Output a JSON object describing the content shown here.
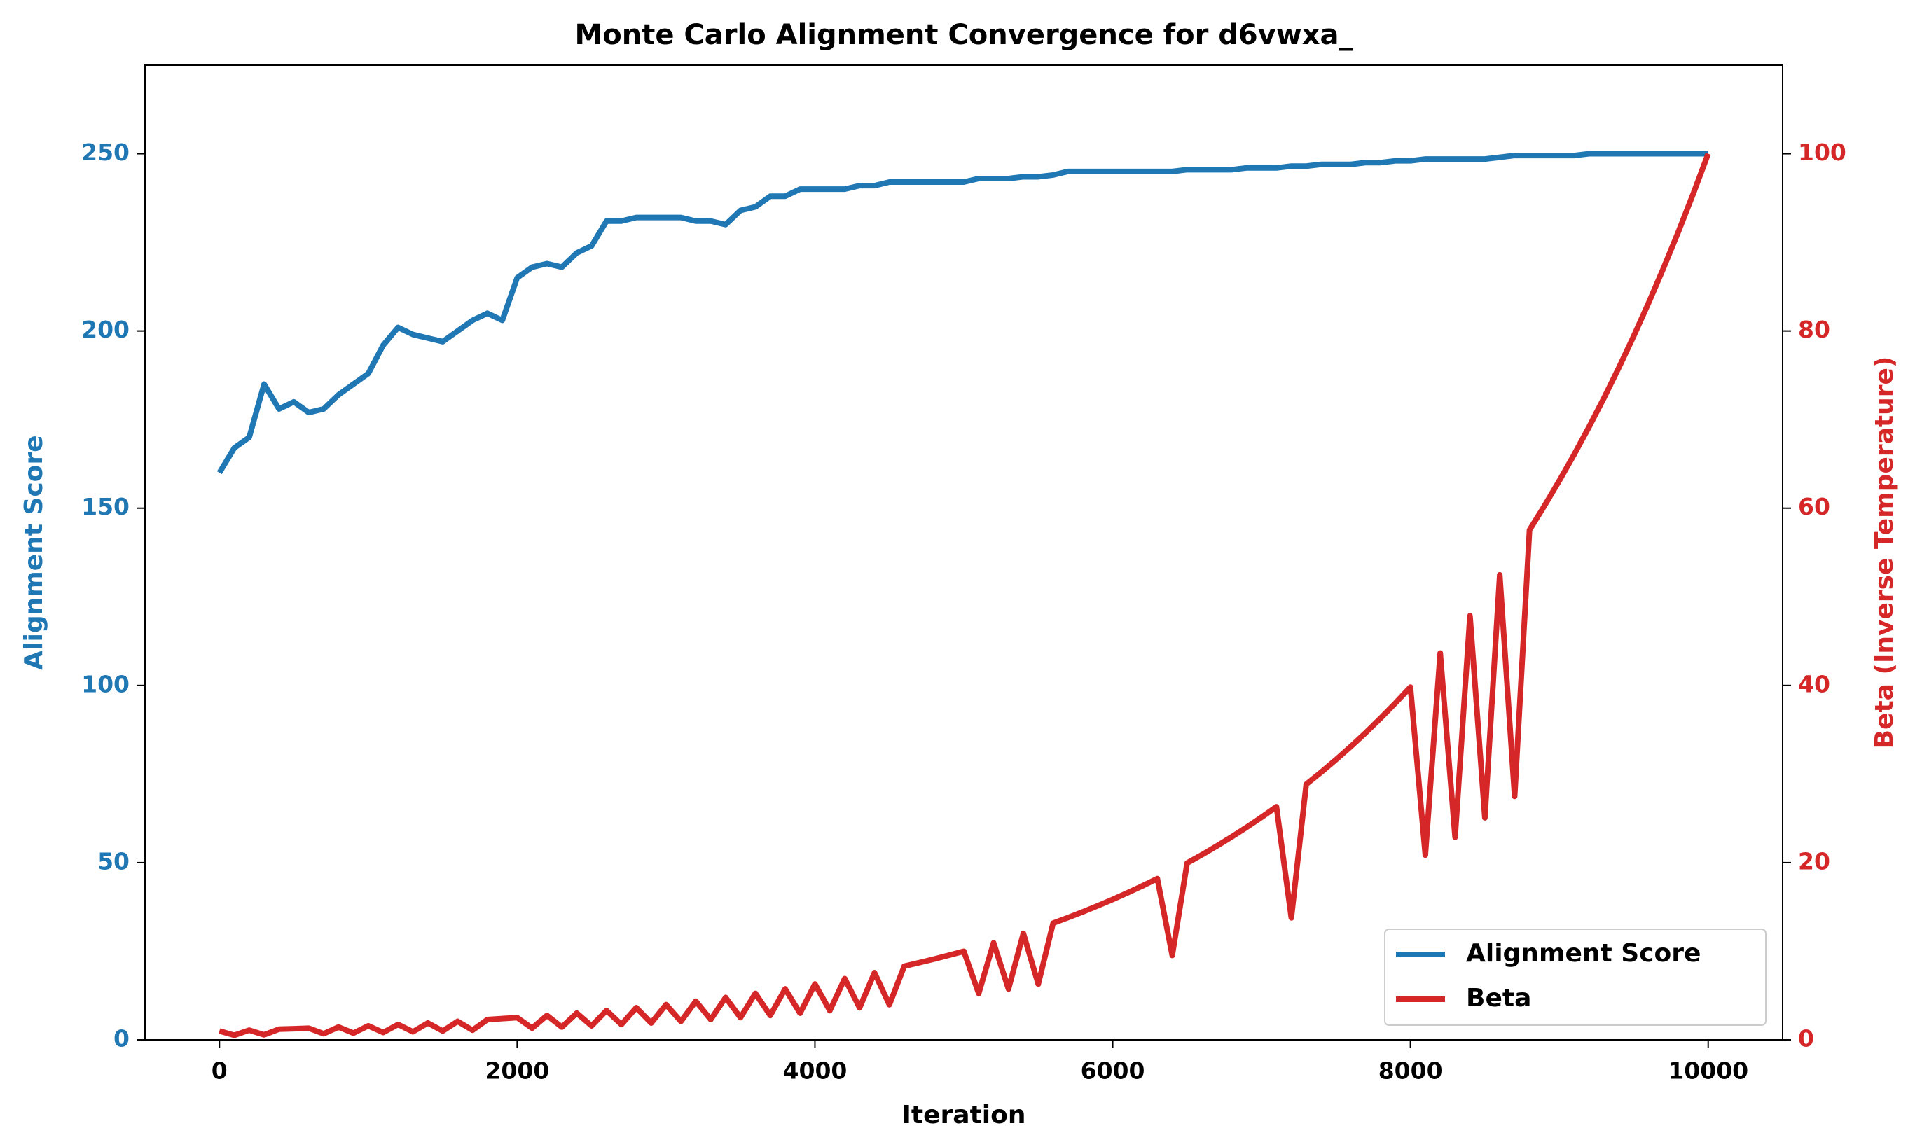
{
  "chart_data": {
    "type": "line",
    "title": "Monte Carlo Alignment Convergence for d6vwxa_",
    "x_label": "Iteration",
    "y_label": "Alignment Score",
    "y2_label": "Beta (Inverse Temperature)",
    "x": [
      0,
      100,
      200,
      300,
      400,
      500,
      600,
      700,
      800,
      900,
      1000,
      1100,
      1200,
      1300,
      1400,
      1500,
      1600,
      1700,
      1800,
      1900,
      2000,
      2100,
      2200,
      2300,
      2400,
      2500,
      2600,
      2700,
      2800,
      2900,
      3000,
      3100,
      3200,
      3300,
      3400,
      3500,
      3600,
      3700,
      3800,
      3900,
      4000,
      4100,
      4200,
      4300,
      4400,
      4500,
      4600,
      4700,
      4800,
      4900,
      5000,
      5100,
      5200,
      5300,
      5400,
      5500,
      5600,
      5700,
      5800,
      5900,
      6000,
      6100,
      6200,
      6300,
      6400,
      6500,
      6600,
      6700,
      6800,
      6900,
      7000,
      7100,
      7200,
      7300,
      7400,
      7500,
      7600,
      7700,
      7800,
      7900,
      8000,
      8100,
      8200,
      8300,
      8400,
      8500,
      8600,
      8700,
      8800,
      8900,
      9000,
      9100,
      9200,
      9300,
      9400,
      9500,
      9600,
      9700,
      9800,
      9900,
      10000
    ],
    "series": [
      {
        "name": "Alignment Score",
        "color": "#1f77b4",
        "values": [
          160,
          167,
          170,
          185,
          178,
          180,
          177,
          178,
          182,
          185,
          188,
          196,
          201,
          199,
          198,
          197,
          200,
          203,
          205,
          203,
          215,
          218,
          219,
          218,
          222,
          224,
          231,
          231,
          232,
          232,
          232,
          232,
          231,
          231,
          230,
          234,
          235,
          238,
          238,
          240,
          240,
          240,
          240,
          241,
          241,
          242,
          242,
          242,
          242,
          242,
          242,
          243,
          243,
          243,
          243.5,
          243.5,
          244,
          245,
          245,
          245,
          245,
          245,
          245,
          245,
          245,
          245.5,
          245.5,
          245.5,
          245.5,
          246,
          246,
          246,
          246.5,
          246.5,
          247,
          247,
          247,
          247.5,
          247.5,
          248,
          248,
          248.5,
          248.5,
          248.5,
          248.5,
          248.5,
          249,
          249.5,
          249.5,
          249.5,
          249.5,
          249.5,
          250,
          250,
          250,
          250,
          250,
          250,
          250,
          250,
          250
        ]
      },
      {
        "name": "Beta",
        "color": "#d62728",
        "axis": "y2",
        "values": [
          1.0,
          0.52,
          1.096,
          0.57,
          1.202,
          1.259,
          1.318,
          0.69,
          1.445,
          0.76,
          1.585,
          0.83,
          1.738,
          0.91,
          1.905,
          1.0,
          2.089,
          1.09,
          2.291,
          2.399,
          2.512,
          1.32,
          2.754,
          1.44,
          3.02,
          1.58,
          3.311,
          1.73,
          3.631,
          1.9,
          3.981,
          2.08,
          4.365,
          2.29,
          4.786,
          2.51,
          5.248,
          2.75,
          5.754,
          3.01,
          6.31,
          3.3,
          6.918,
          3.62,
          7.586,
          3.97,
          8.318,
          8.71,
          9.12,
          9.55,
          10.0,
          5.24,
          10.96,
          5.74,
          12.02,
          6.29,
          13.18,
          13.8,
          14.45,
          15.14,
          15.85,
          16.6,
          17.38,
          18.2,
          9.53,
          19.95,
          20.89,
          21.88,
          22.91,
          23.99,
          25.12,
          26.3,
          13.77,
          28.84,
          30.2,
          31.62,
          33.11,
          34.67,
          36.31,
          38.02,
          39.81,
          20.85,
          43.65,
          22.86,
          47.86,
          25.06,
          52.48,
          27.48,
          57.54,
          60.26,
          63.1,
          66.07,
          69.18,
          72.44,
          75.86,
          79.43,
          83.18,
          87.1,
          91.2,
          95.5,
          100
        ]
      }
    ],
    "xlim": [
      -500,
      10500
    ],
    "xticks": [
      0,
      2000,
      4000,
      6000,
      8000,
      10000
    ],
    "ylim": [
      0,
      275
    ],
    "yticks": [
      0,
      50,
      100,
      150,
      200,
      250
    ],
    "y2lim": [
      0,
      110
    ],
    "y2ticks": [
      0,
      20,
      40,
      60,
      80,
      100
    ],
    "legend": "lower right"
  }
}
